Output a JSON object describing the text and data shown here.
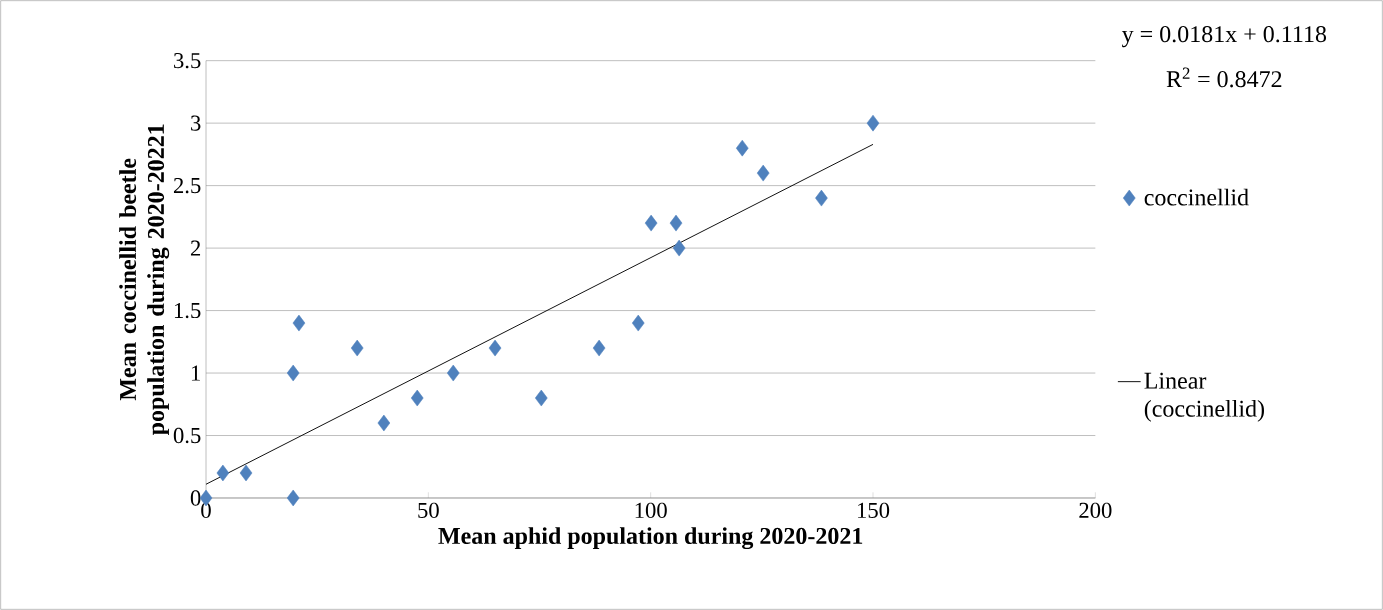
{
  "chart_data": {
    "type": "scatter",
    "xlabel": "Mean aphid population during 2020-2021",
    "ylabel": "Mean coccinellid beetle population during 2020-20221",
    "x": [
      0,
      3.8,
      9,
      19.6,
      19.6,
      20.9,
      34,
      40,
      47.5,
      55.6,
      65,
      75.4,
      88.4,
      97.2,
      100.1,
      105.7,
      106.4,
      120.6,
      125.3,
      138.4,
      150
    ],
    "series": [
      {
        "name": "coccinellid",
        "color": "#4f81bd",
        "marker": "diamond",
        "values": [
          0,
          0.2,
          0.2,
          0,
          1.0,
          1.4,
          1.2,
          0.6,
          0.8,
          1.0,
          1.2,
          0.8,
          1.2,
          1.4,
          2.2,
          2.2,
          2.0,
          2.8,
          2.6,
          2.4,
          3.0
        ]
      },
      {
        "name": "Linear (coccinellid)",
        "type": "line",
        "color": "#000000",
        "marker": "none",
        "line_style": "solid",
        "x": [
          0,
          150
        ],
        "values": [
          0.11,
          2.83
        ]
      }
    ],
    "annotations": [
      "y = 0.0181x + 0.1118",
      "R$^{2}$ = 0.8472"
    ],
    "xlim": [
      0,
      200
    ],
    "xticks": [
      0,
      50,
      100,
      150,
      200
    ],
    "ylim": [
      0,
      3.5
    ],
    "yticks": [
      0,
      0.5,
      1,
      1.5,
      2,
      2.5,
      3,
      3.5
    ],
    "grid": "y",
    "legend": "right"
  }
}
